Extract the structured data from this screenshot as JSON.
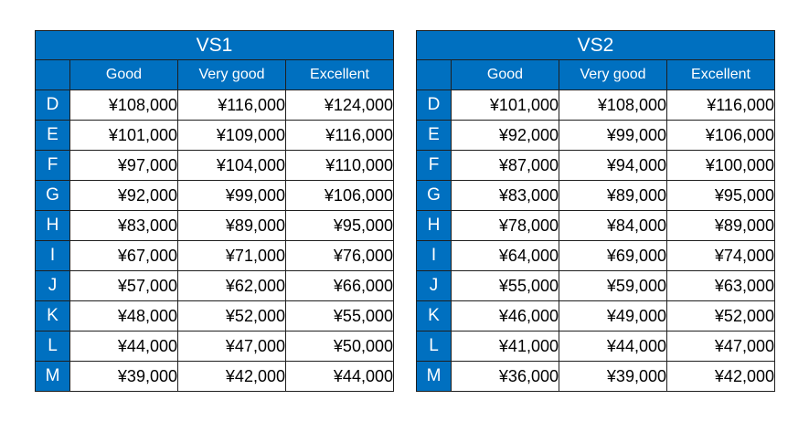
{
  "tables": [
    {
      "title": "VS1",
      "columns": [
        "Good",
        "Very good",
        "Excellent"
      ],
      "rows": [
        {
          "grade": "D",
          "prices": [
            "¥108,000",
            "¥116,000",
            "¥124,000"
          ]
        },
        {
          "grade": "E",
          "prices": [
            "¥101,000",
            "¥109,000",
            "¥116,000"
          ]
        },
        {
          "grade": "F",
          "prices": [
            "¥97,000",
            "¥104,000",
            "¥110,000"
          ]
        },
        {
          "grade": "G",
          "prices": [
            "¥92,000",
            "¥99,000",
            "¥106,000"
          ]
        },
        {
          "grade": "H",
          "prices": [
            "¥83,000",
            "¥89,000",
            "¥95,000"
          ]
        },
        {
          "grade": "I",
          "prices": [
            "¥67,000",
            "¥71,000",
            "¥76,000"
          ]
        },
        {
          "grade": "J",
          "prices": [
            "¥57,000",
            "¥62,000",
            "¥66,000"
          ]
        },
        {
          "grade": "K",
          "prices": [
            "¥48,000",
            "¥52,000",
            "¥55,000"
          ]
        },
        {
          "grade": "L",
          "prices": [
            "¥44,000",
            "¥47,000",
            "¥50,000"
          ]
        },
        {
          "grade": "M",
          "prices": [
            "¥39,000",
            "¥42,000",
            "¥44,000"
          ]
        }
      ]
    },
    {
      "title": "VS2",
      "columns": [
        "Good",
        "Very good",
        "Excellent"
      ],
      "rows": [
        {
          "grade": "D",
          "prices": [
            "¥101,000",
            "¥108,000",
            "¥116,000"
          ]
        },
        {
          "grade": "E",
          "prices": [
            "¥92,000",
            "¥99,000",
            "¥106,000"
          ]
        },
        {
          "grade": "F",
          "prices": [
            "¥87,000",
            "¥94,000",
            "¥100,000"
          ]
        },
        {
          "grade": "G",
          "prices": [
            "¥83,000",
            "¥89,000",
            "¥95,000"
          ]
        },
        {
          "grade": "H",
          "prices": [
            "¥78,000",
            "¥84,000",
            "¥89,000"
          ]
        },
        {
          "grade": "I",
          "prices": [
            "¥64,000",
            "¥69,000",
            "¥74,000"
          ]
        },
        {
          "grade": "J",
          "prices": [
            "¥55,000",
            "¥59,000",
            "¥63,000"
          ]
        },
        {
          "grade": "K",
          "prices": [
            "¥46,000",
            "¥49,000",
            "¥52,000"
          ]
        },
        {
          "grade": "L",
          "prices": [
            "¥41,000",
            "¥44,000",
            "¥47,000"
          ]
        },
        {
          "grade": "M",
          "prices": [
            "¥36,000",
            "¥39,000",
            "¥42,000"
          ]
        }
      ]
    }
  ],
  "colors": {
    "header_blue": "#0070c0",
    "header_text": "#ffffff",
    "border": "#1f1f1f"
  }
}
